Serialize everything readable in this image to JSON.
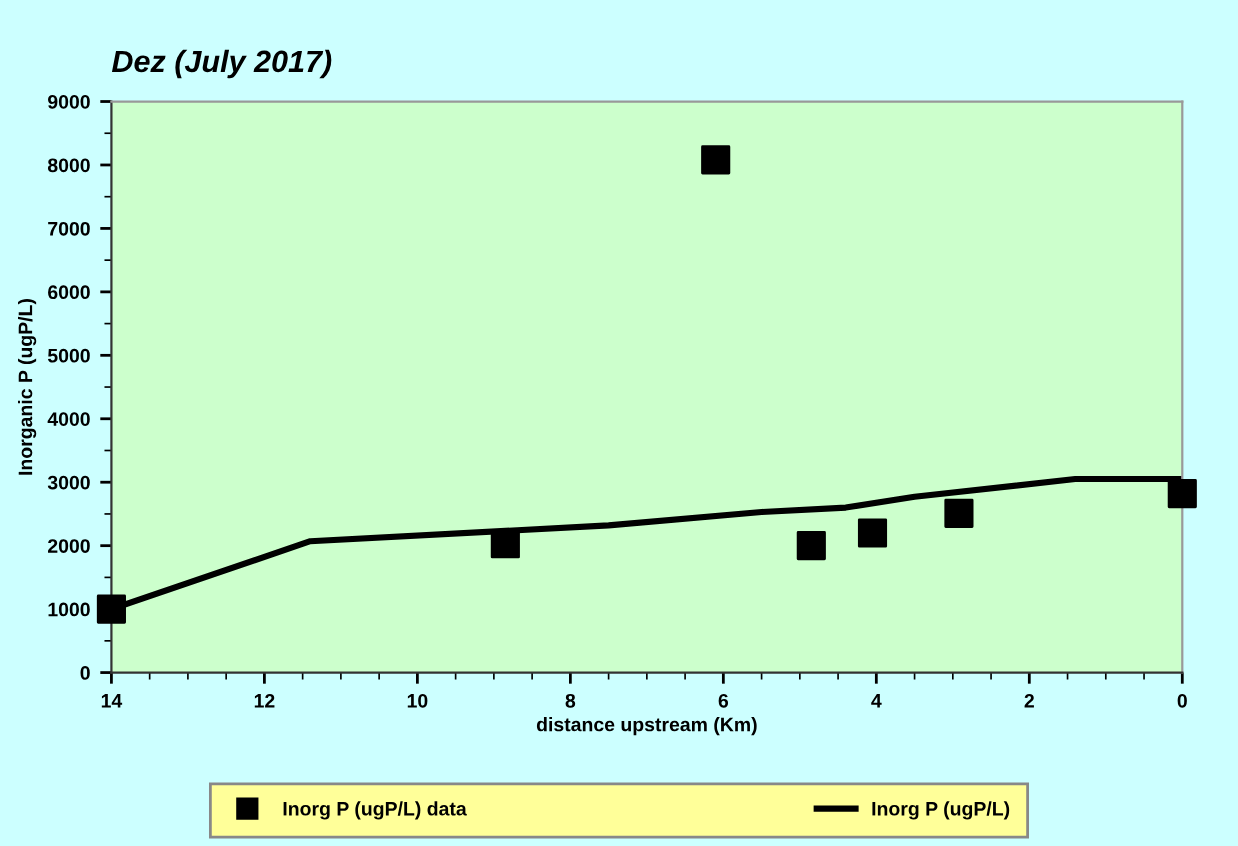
{
  "chart_data": {
    "type": "scatter",
    "title": "Dez (July 2017)",
    "xlabel": "distance upstream (Km)",
    "ylabel": "Inorganic P (ugP/L)",
    "xlim": [
      14,
      0
    ],
    "ylim": [
      0,
      9000
    ],
    "xticks": [
      14,
      {
        "value": 13.5,
        "label": null
      },
      {
        "value": 13,
        "label": null
      },
      {
        "value": 12.5,
        "label": null
      },
      12,
      {
        "value": 11.5,
        "label": null
      },
      {
        "value": 11,
        "label": null
      },
      {
        "value": 10.5,
        "label": null
      },
      10,
      {
        "value": 9.5,
        "label": null
      },
      {
        "value": 9,
        "label": null
      },
      {
        "value": 8.5,
        "label": null
      },
      8,
      {
        "value": 7.5,
        "label": null
      },
      {
        "value": 7,
        "label": null
      },
      {
        "value": 6.5,
        "label": null
      },
      6,
      {
        "value": 5.5,
        "label": null
      },
      {
        "value": 5,
        "label": null
      },
      {
        "value": 4.5,
        "label": null
      },
      4,
      {
        "value": 3.5,
        "label": null
      },
      {
        "value": 3,
        "label": null
      },
      {
        "value": 2.5,
        "label": null
      },
      2,
      {
        "value": 1.5,
        "label": null
      },
      {
        "value": 1,
        "label": null
      },
      {
        "value": 0.5,
        "label": null
      },
      0
    ],
    "yticks": [
      0,
      {
        "value": 500,
        "label": null
      },
      1000,
      {
        "value": 1500,
        "label": null
      },
      2000,
      {
        "value": 2500,
        "label": null
      },
      3000,
      {
        "value": 3500,
        "label": null
      },
      4000,
      {
        "value": 4500,
        "label": null
      },
      5000,
      {
        "value": 5500,
        "label": null
      },
      6000,
      {
        "value": 6500,
        "label": null
      },
      7000,
      {
        "value": 7500,
        "label": null
      },
      8000,
      {
        "value": 8500,
        "label": null
      },
      9000
    ],
    "grid": false,
    "legend": "bottom",
    "series": [
      {
        "name": "Inorg P (ugP/L) data",
        "marker": "square",
        "color": "#000000",
        "x": [
          14,
          8.85,
          6.1,
          4.85,
          4.05,
          2.92,
          0
        ],
        "values": [
          1000,
          2030,
          8080,
          2000,
          2200,
          2510,
          2820
        ]
      },
      {
        "name": "Inorg P (ugP/L)",
        "type": "line",
        "marker": "none",
        "line_style": "solid",
        "color": "#000000",
        "x": [
          14,
          11.4,
          7.5,
          5.5,
          4.4,
          3.5,
          1.4,
          0
        ],
        "values": [
          1000,
          2070,
          2320,
          2530,
          2600,
          2770,
          3050,
          3050
        ]
      }
    ]
  }
}
